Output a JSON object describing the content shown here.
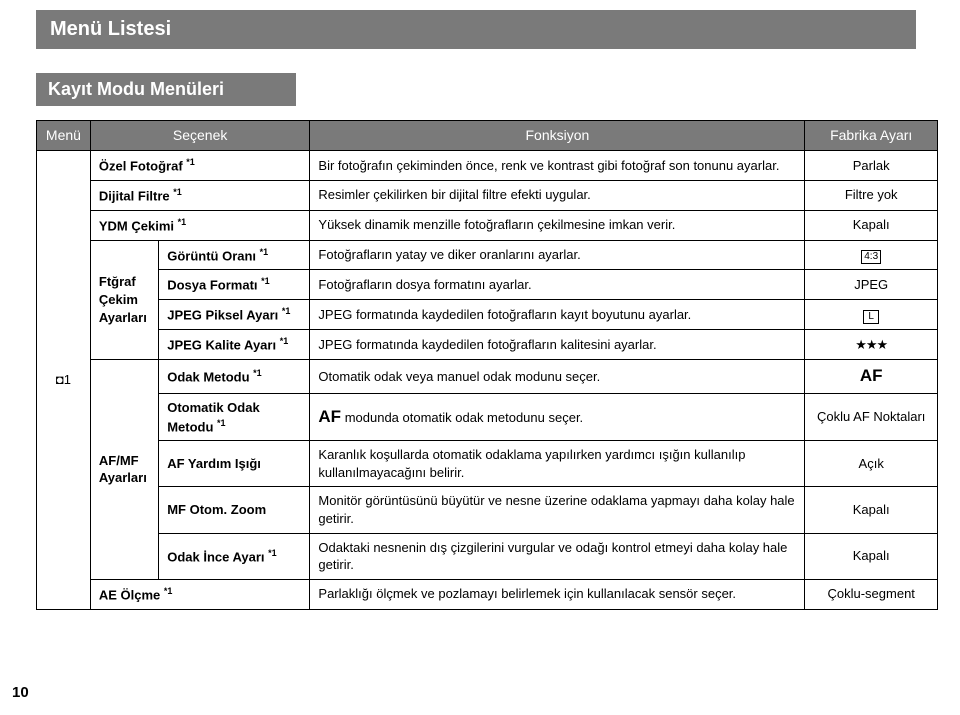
{
  "pageNumber": "10",
  "bannerMain": "Menü Listesi",
  "bannerSub": "Kayıt Modu Menüleri",
  "headers": {
    "menu": "Menü",
    "option": "Seçenek",
    "function": "Fonksiyon",
    "default": "Fabrika Ayarı"
  },
  "menuCol": "1",
  "groupPhoto": "Ftğraf Çekim Ayarları",
  "groupAF": "AF/MF Ayarları",
  "rows": {
    "r1o": "Özel Fotoğraf ",
    "r1s": "*1",
    "r1f": "Bir fotoğrafın çekiminden önce, renk ve kontrast gibi fotoğraf son tonunu ayarlar.",
    "r1d": "Parlak",
    "r2o": "Dijital Filtre ",
    "r2s": "*1",
    "r2f": "Resimler çekilirken bir dijital filtre efekti uygular.",
    "r2d": "Filtre yok",
    "r3o": "YDM Çekimi ",
    "r3s": "*1",
    "r3f": "Yüksek dinamik menzille fotoğrafların çekilmesine imkan verir.",
    "r3d": "Kapalı",
    "r4o": "Görüntü Oranı ",
    "r4s": "*1",
    "r4f": "Fotoğrafların yatay ve diker oranlarını ayarlar.",
    "r4d": "4:3",
    "r5o": "Dosya Formatı ",
    "r5s": "*1",
    "r5f": "Fotoğrafların dosya formatını ayarlar.",
    "r5d": "JPEG",
    "r6o": "JPEG Piksel Ayarı ",
    "r6s": "*1",
    "r6f": "JPEG formatında kaydedilen fotoğrafların kayıt boyutunu ayarlar.",
    "r6d": "L",
    "r7o": "JPEG Kalite Ayarı ",
    "r7s": "*1",
    "r7f": "JPEG formatında kaydedilen fotoğrafların kalitesini ayarlar.",
    "r7d": "★★★",
    "r8o": "Odak Metodu ",
    "r8s": "*1",
    "r8f": "Otomatik odak veya manuel odak modunu seçer.",
    "r8d": "AF",
    "r9o": "Otomatik Odak Metodu ",
    "r9s": "*1",
    "r9fa": "AF",
    "r9fb": " modunda otomatik odak metodunu seçer.",
    "r9d": "Çoklu AF Noktaları",
    "r10o": "AF Yardım Işığı",
    "r10f": "Karanlık koşullarda otomatik odaklama yapılırken yardımcı ışığın kullanılıp kullanılmayacağını belirir.",
    "r10d": "Açık",
    "r11o": "MF Otom. Zoom",
    "r11f": "Monitör görüntüsünü büyütür ve nesne üzerine odaklama yapmayı daha kolay hale getirir.",
    "r11d": "Kapalı",
    "r12o": "Odak İnce Ayarı ",
    "r12s": "*1",
    "r12f": "Odaktaki nesnenin dış çizgilerini vurgular ve odağı kontrol etmeyi daha kolay hale getirir.",
    "r12d": "Kapalı",
    "r13o": "AE Ölçme ",
    "r13s": "*1",
    "r13f": "Parlaklığı ölçmek ve pozlamayı belirlemek için kullanılacak sensör seçer.",
    "r13d": "Çoklu-segment"
  }
}
